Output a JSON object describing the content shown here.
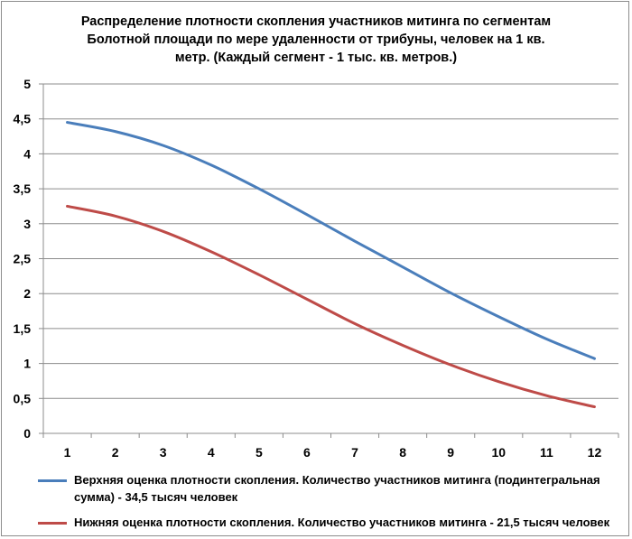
{
  "chart_data": {
    "type": "line",
    "title_lines": [
      "Распределение плотности скопления участников митинга по сегментам",
      "Болотной площади по мере удаленности от трибуны, человек на 1 кв.",
      "метр.  (Каждый сегмент  - 1 тыс. кв. метров.)"
    ],
    "x": [
      1,
      2,
      3,
      4,
      5,
      6,
      7,
      8,
      9,
      10,
      11,
      12
    ],
    "x_tick_labels": [
      "1",
      "2",
      "3",
      "4",
      "5",
      "6",
      "7",
      "8",
      "9",
      "10",
      "11",
      "12"
    ],
    "ylim": [
      0,
      5
    ],
    "y_ticks": [
      0,
      0.5,
      1,
      1.5,
      2,
      2.5,
      3,
      3.5,
      4,
      4.5,
      5
    ],
    "y_tick_labels": [
      "0",
      "0,5",
      "1",
      "1,5",
      "2",
      "2,5",
      "3",
      "3,5",
      "4",
      "4,5",
      "5"
    ],
    "grid": true,
    "legend_position": "bottom",
    "series": [
      {
        "name": "Верхняя оценка плотности скопления. Количество участников митинга  (подинтегральная сумма) -   34,5 тысяч человек",
        "color": "#4a7ebb",
        "values": [
          4.45,
          4.32,
          4.12,
          3.84,
          3.5,
          3.13,
          2.75,
          2.38,
          2.01,
          1.67,
          1.35,
          1.07
        ]
      },
      {
        "name": "Нижняя оценка плотности скопления. Количество участников митинга  -  21,5 тысяч человек",
        "color": "#be4b48",
        "values": [
          3.25,
          3.11,
          2.89,
          2.6,
          2.27,
          1.92,
          1.57,
          1.26,
          0.98,
          0.74,
          0.54,
          0.38
        ]
      }
    ]
  }
}
